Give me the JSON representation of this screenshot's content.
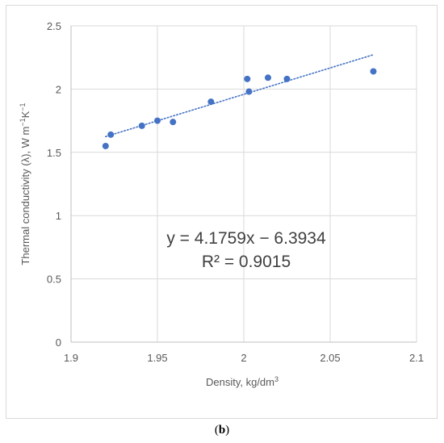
{
  "chart_data": {
    "type": "scatter",
    "xlabel": "Density, kg/dm",
    "xlabel_sup": "3",
    "ylabel": "Thermal conductivity (λ), W m",
    "ylabel_sup1": "−1",
    "ylabel_mid": "K",
    "ylabel_sup2": "−1",
    "xlim": [
      1.9,
      2.1
    ],
    "ylim": [
      0,
      2.5
    ],
    "x_ticks": [
      "1.9",
      "1.95",
      "2",
      "2.05",
      "2.1"
    ],
    "x_tick_values": [
      1.9,
      1.95,
      2.0,
      2.05,
      2.1
    ],
    "y_ticks": [
      "0",
      "0.5",
      "1",
      "1.5",
      "2",
      "2.5"
    ],
    "y_tick_values": [
      0,
      0.5,
      1.0,
      1.5,
      2.0,
      2.5
    ],
    "grid": true,
    "marker_color": "#4472c4",
    "trendline": {
      "type": "linear",
      "slope": 4.1759,
      "intercept": -6.3934,
      "x_range": [
        1.92,
        2.075
      ],
      "style": "dotted",
      "color": "#4472c4"
    },
    "equation_label": "y = 4.1759x − 6.3934",
    "r2_label": "R² = 0.9015",
    "points": [
      {
        "x": 1.92,
        "y": 1.55
      },
      {
        "x": 1.923,
        "y": 1.64
      },
      {
        "x": 1.941,
        "y": 1.71
      },
      {
        "x": 1.95,
        "y": 1.75
      },
      {
        "x": 1.959,
        "y": 1.74
      },
      {
        "x": 1.981,
        "y": 1.9
      },
      {
        "x": 2.002,
        "y": 2.08
      },
      {
        "x": 2.003,
        "y": 1.98
      },
      {
        "x": 2.014,
        "y": 2.09
      },
      {
        "x": 2.025,
        "y": 2.08
      },
      {
        "x": 2.075,
        "y": 2.14
      }
    ]
  },
  "caption": {
    "open": "(",
    "label": "b",
    "close": ")"
  }
}
